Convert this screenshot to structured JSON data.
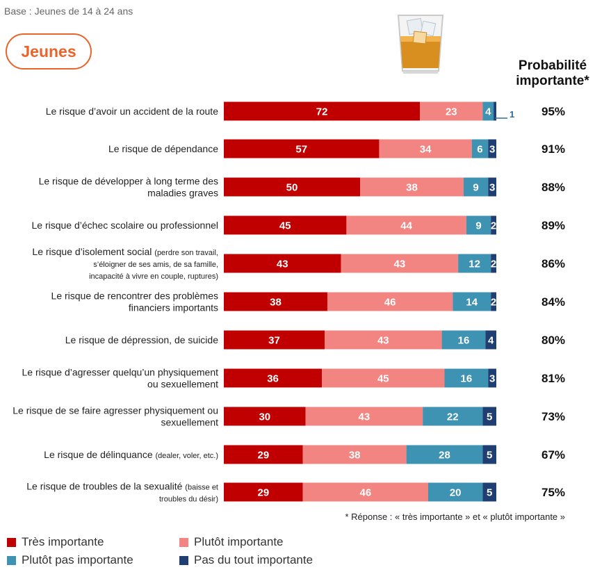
{
  "header": {
    "base_text": "Base : Jeunes de 14 à 24 ans",
    "badge": "Jeunes",
    "prob_title_line1": "Probabilité",
    "prob_title_line2": "importante*"
  },
  "footnote": "* Réponse : « très importante » et « plutôt importante »",
  "colors": {
    "tres": "#c00000",
    "plutot": "#f28482",
    "plutot_pas": "#3f93b2",
    "pas_du_tout": "#1f3f73",
    "accent": "#e8642a"
  },
  "legend": [
    {
      "label": "Très importante",
      "color_key": "tres"
    },
    {
      "label": "Plutôt importante",
      "color_key": "plutot"
    },
    {
      "label": "Plutôt pas importante",
      "color_key": "plutot_pas"
    },
    {
      "label": "Pas du tout importante",
      "color_key": "pas_du_tout"
    }
  ],
  "chart_data": {
    "type": "bar",
    "orientation": "horizontal-stacked-100",
    "series": [
      {
        "name": "Très importante",
        "color_key": "tres"
      },
      {
        "name": "Plutôt importante",
        "color_key": "plutot"
      },
      {
        "name": "Plutôt pas importante",
        "color_key": "plutot_pas"
      },
      {
        "name": "Pas du tout importante",
        "color_key": "pas_du_tout"
      }
    ],
    "categories": [
      {
        "lines": [
          {
            "main": "Le risque d’avoir un accident de la route"
          }
        ],
        "values": [
          72,
          23,
          4,
          1
        ],
        "callout": "1",
        "prob": "95%"
      },
      {
        "lines": [
          {
            "main": "Le risque de dépendance"
          }
        ],
        "values": [
          57,
          34,
          6,
          3
        ],
        "prob": "91%"
      },
      {
        "lines": [
          {
            "main": "Le risque de développer à long terme des"
          },
          {
            "main": "maladies graves"
          }
        ],
        "values": [
          50,
          38,
          9,
          3
        ],
        "prob": "88%"
      },
      {
        "lines": [
          {
            "main": "Le risque d’échec scolaire ou professionnel"
          }
        ],
        "values": [
          45,
          44,
          9,
          2
        ],
        "prob": "89%"
      },
      {
        "lines": [
          {
            "main": "Le risque d’isolement social ",
            "small": "(perdre son travail,"
          },
          {
            "small": "s’éloigner de ses amis, de sa famille,"
          },
          {
            "small": "incapacité à vivre en couple, ruptures)"
          }
        ],
        "values": [
          43,
          43,
          12,
          2
        ],
        "prob": "86%"
      },
      {
        "lines": [
          {
            "main": "Le risque de rencontrer des problèmes"
          },
          {
            "main": "financiers importants"
          }
        ],
        "values": [
          38,
          46,
          14,
          2
        ],
        "prob": "84%"
      },
      {
        "lines": [
          {
            "main": "Le risque de dépression, de suicide"
          }
        ],
        "values": [
          37,
          43,
          16,
          4
        ],
        "prob": "80%"
      },
      {
        "lines": [
          {
            "main": "Le risque d’agresser quelqu’un physiquement"
          },
          {
            "main": "ou sexuellement"
          }
        ],
        "values": [
          36,
          45,
          16,
          3
        ],
        "prob": "81%"
      },
      {
        "lines": [
          {
            "main": "Le risque de se faire agresser physiquement ou"
          },
          {
            "main": "sexuellement"
          }
        ],
        "values": [
          30,
          43,
          22,
          5
        ],
        "prob": "73%"
      },
      {
        "lines": [
          {
            "main": "Le risque de délinquance ",
            "small": "(dealer, voler, etc.)"
          }
        ],
        "values": [
          29,
          38,
          28,
          5
        ],
        "prob": "67%"
      },
      {
        "lines": [
          {
            "main": "Le risque de troubles de la sexualité ",
            "small": "(baisse et"
          },
          {
            "small": "troubles du désir)"
          }
        ],
        "values": [
          29,
          46,
          20,
          5
        ],
        "prob": "75%"
      }
    ],
    "xlim": [
      0,
      100
    ],
    "title": "",
    "xlabel": "",
    "ylabel": "Probabilité importante*"
  }
}
